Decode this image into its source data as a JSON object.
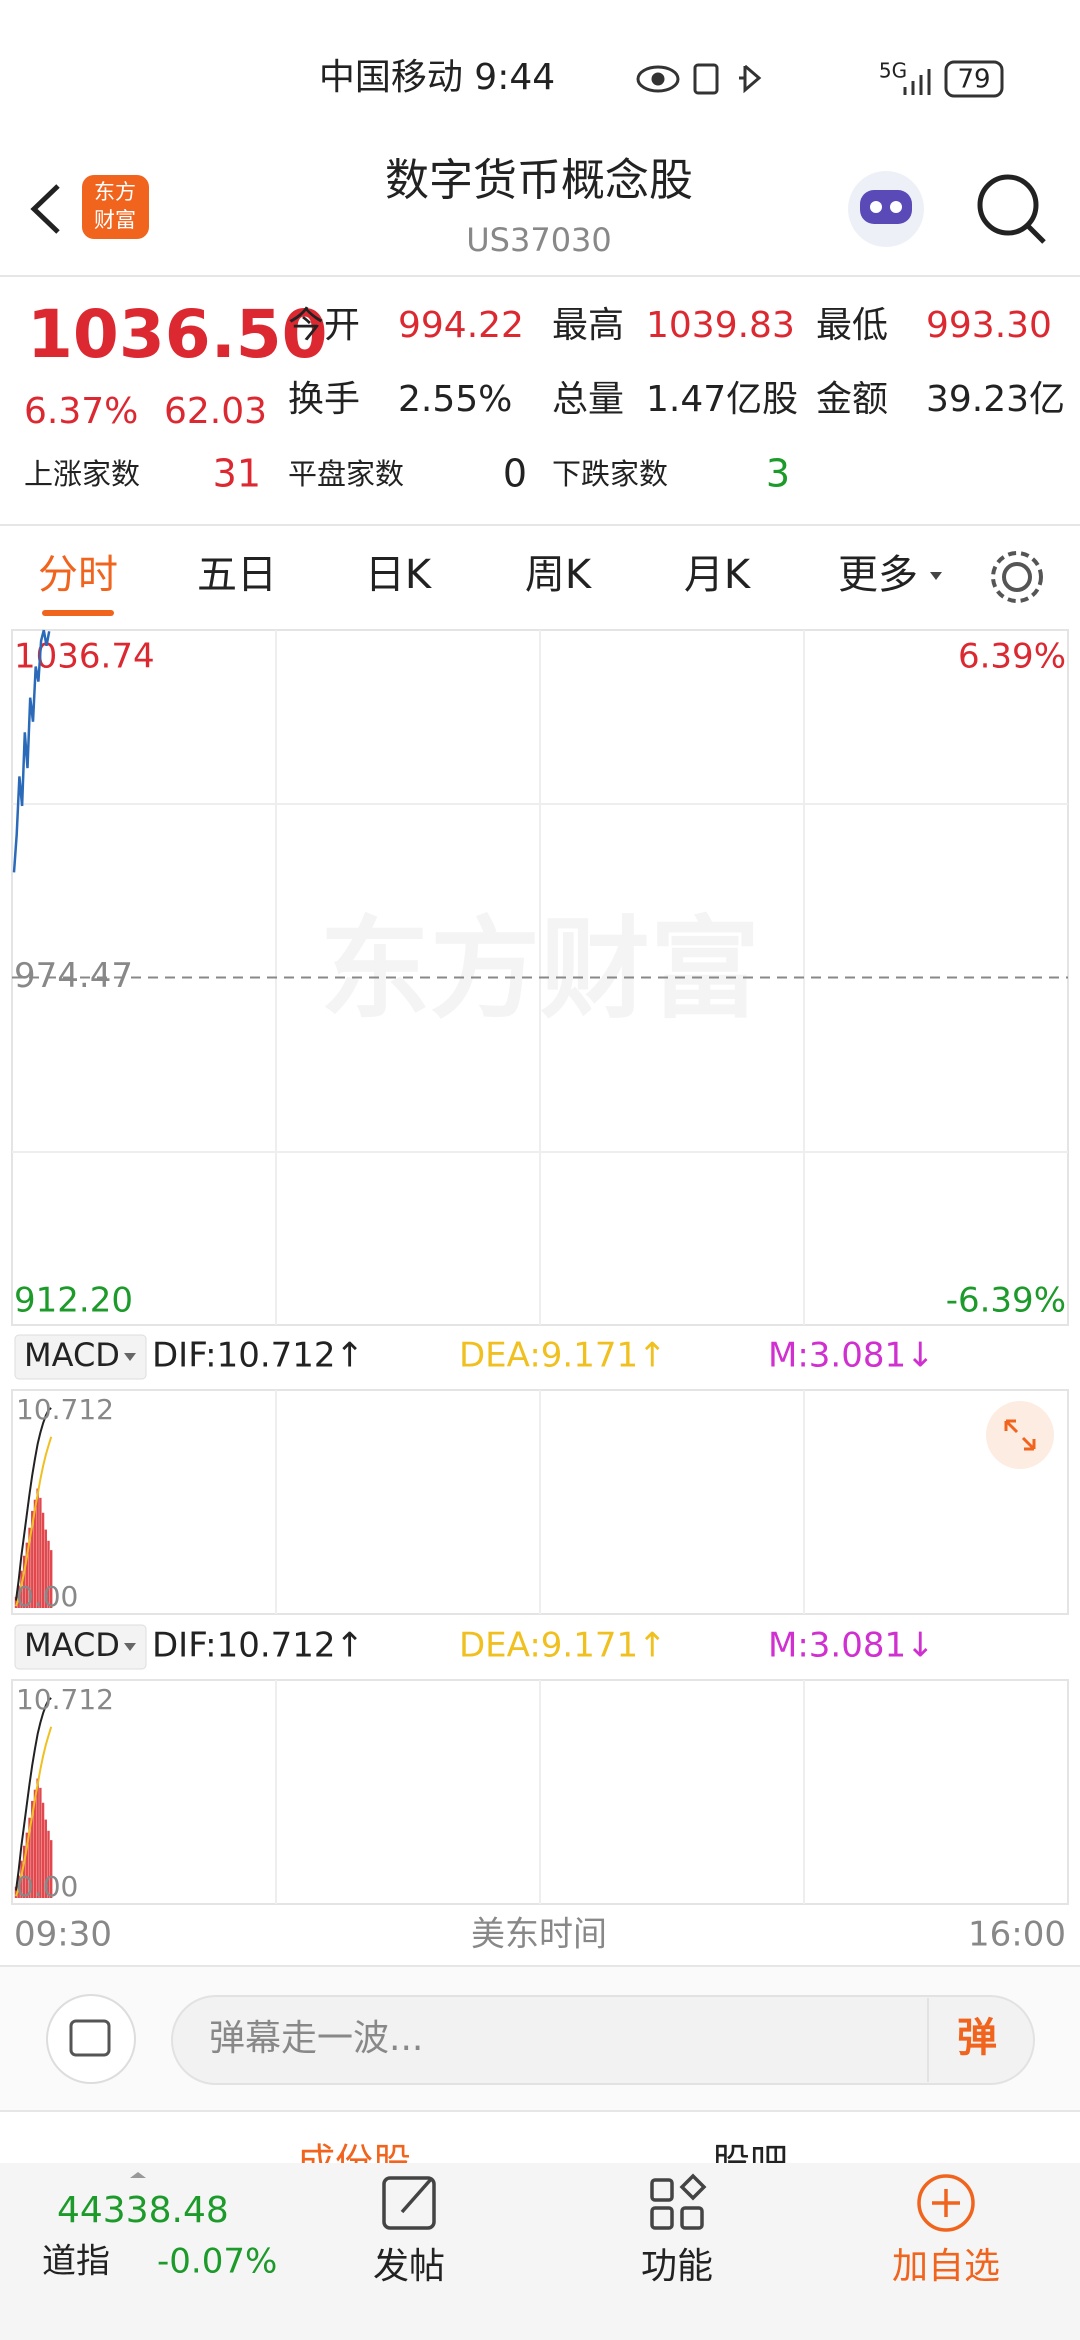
{
  "status_bar": {
    "carrier_time": "中国移动 9:44",
    "network": "5G",
    "battery": "79"
  },
  "header": {
    "logo": [
      "东方",
      "财富"
    ],
    "title": "数字货币概念股",
    "code": "US37030"
  },
  "quote": {
    "price": "1036.50",
    "change_pct": "6.37%",
    "change": "62.03",
    "fields": [
      {
        "label": "今开",
        "value": "994.22"
      },
      {
        "label": "最高",
        "value": "1039.83"
      },
      {
        "label": "最低",
        "value": "993.30"
      },
      {
        "label": "换手",
        "value": "2.55%"
      },
      {
        "label": "总量",
        "value": "1.47亿股"
      },
      {
        "label": "金额",
        "value": "39.23亿"
      }
    ],
    "breadth": [
      {
        "label": "上涨家数",
        "value": "31"
      },
      {
        "label": "平盘家数",
        "value": "0"
      },
      {
        "label": "下跌家数",
        "value": "3"
      }
    ]
  },
  "tabs": [
    "分时",
    "五日",
    "日K",
    "周K",
    "月K",
    "更多"
  ],
  "intraday": {
    "watermark": "东方财富",
    "price_axis": [
      {
        "value": 1036.74,
        "label": "1036.74"
      },
      {
        "value": 974.47,
        "label": "974.47"
      },
      {
        "value": 912.2,
        "label": "912.20"
      }
    ],
    "pct_axis": [
      "6.39%",
      "-6.39%"
    ],
    "prices": [
      993.3,
      1000.1,
      1010.5,
      1005.2,
      1018.4,
      1012.0,
      1024.6,
      1020.3,
      1030.2,
      1027.5,
      1034.8,
      1036.7,
      1033.9,
      1036.5
    ],
    "time_labels": [
      "09:30",
      "美东时间",
      "16:00"
    ]
  },
  "macd": {
    "panels": [
      {
        "name": "MACD",
        "dif": "DIF:10.712↑",
        "dea": "DEA:9.171↑",
        "m": "M:3.081↓"
      },
      {
        "name": "MACD",
        "dif": "DIF:10.712↑",
        "dea": "DEA:9.171↑",
        "m": "M:3.081↓"
      }
    ],
    "scale": [
      {
        "value": 10.712,
        "label": "10.712"
      },
      {
        "value": 0,
        "label": "0.00"
      }
    ],
    "bars": [
      0.6,
      1.2,
      2.0,
      2.8,
      3.5,
      4.3,
      5.2,
      5.8,
      6.4,
      5.9,
      5.1,
      4.2,
      3.6,
      3.1
    ],
    "dif_line": [
      0.4,
      1.5,
      2.8,
      3.9,
      5.0,
      6.1,
      7.1,
      8.0,
      8.8,
      9.4,
      9.9,
      10.3,
      10.6,
      10.712
    ],
    "dea_line": [
      0.1,
      0.5,
      1.2,
      1.9,
      2.7,
      3.6,
      4.4,
      5.3,
      6.1,
      6.9,
      7.6,
      8.2,
      8.7,
      9.171
    ]
  },
  "comment_bar": {
    "placeholder": "弹幕走一波...",
    "button": "弹"
  },
  "sub_tabs": [
    "成份股",
    "股吧"
  ],
  "bottom_nav": {
    "index_value": "44338.48",
    "index_name": "道指",
    "index_change": "-0.07%",
    "actions": [
      "发帖",
      "功能",
      "加自选"
    ]
  }
}
